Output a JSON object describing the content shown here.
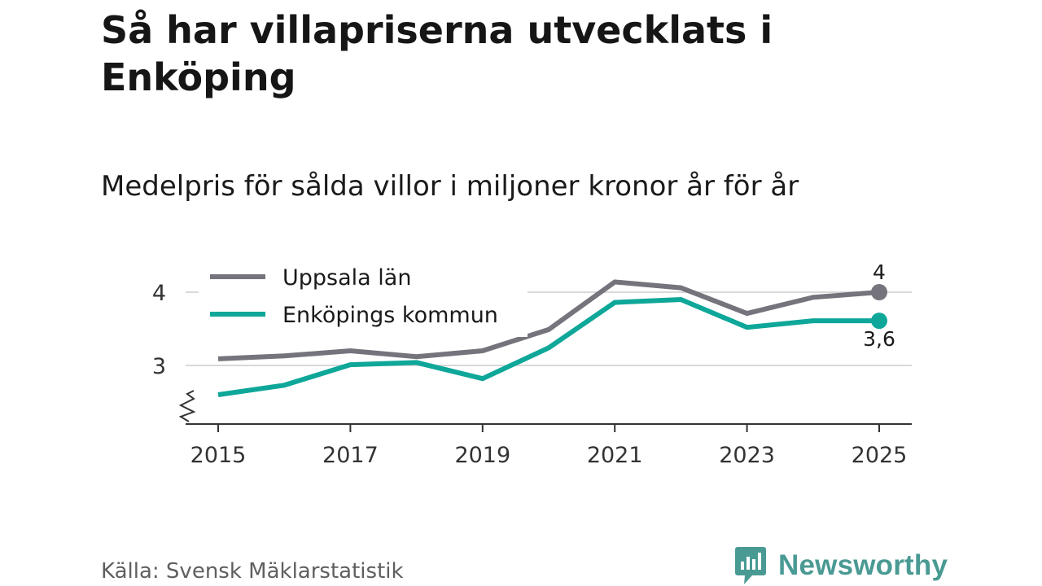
{
  "header": {
    "title": "Så har villapriserna utvecklats i Enköping",
    "subtitle": "Medelpris för sålda villor i miljoner kronor år för år"
  },
  "footer": {
    "source": "Källa: Svensk Mäklarstatistik",
    "brand": "Newsworthy"
  },
  "colors": {
    "uppsala": "#75737b",
    "enkoping": "#0ea799",
    "grid": "#d9d9d9",
    "axis": "#333333",
    "brand": "#4a9a94"
  },
  "chart_data": {
    "type": "line",
    "title": "Så har villapriserna utvecklats i Enköping",
    "subtitle": "Medelpris för sålda villor i miljoner kronor år för år",
    "xlabel": "",
    "ylabel": "",
    "x": [
      2015,
      2016,
      2017,
      2018,
      2019,
      2020,
      2021,
      2022,
      2023,
      2024,
      2025
    ],
    "xticks": [
      "2015",
      "2017",
      "2019",
      "2021",
      "2023",
      "2025"
    ],
    "yticks": [
      {
        "value": 3,
        "label": "3"
      },
      {
        "value": 4,
        "label": "4"
      }
    ],
    "ylim": [
      2.2,
      4.4
    ],
    "axis_break": true,
    "legend_position": "top-left",
    "series": [
      {
        "name": "Uppsala län",
        "color": "#75737b",
        "values": [
          3.09,
          3.13,
          3.2,
          3.12,
          3.2,
          3.49,
          4.14,
          4.06,
          3.71,
          3.93,
          4.0
        ],
        "end_label": "4"
      },
      {
        "name": "Enköpings kommun",
        "color": "#0ea799",
        "values": [
          2.6,
          2.73,
          3.01,
          3.04,
          2.82,
          3.24,
          3.86,
          3.9,
          3.52,
          3.61,
          3.61
        ],
        "end_label": "3,6"
      }
    ]
  }
}
